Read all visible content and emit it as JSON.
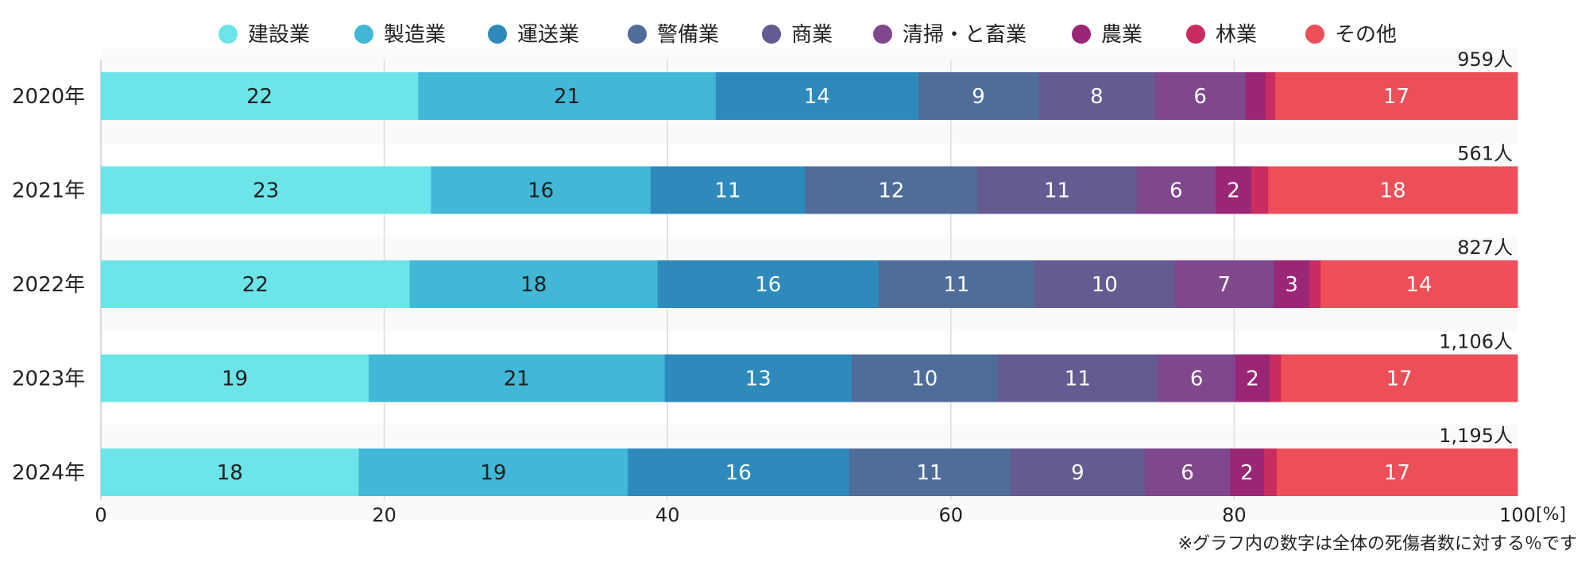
{
  "chart_data": {
    "type": "bar",
    "orientation": "horizontal",
    "stacked": true,
    "categories": [
      "2020年",
      "2021年",
      "2022年",
      "2023年",
      "2024年"
    ],
    "totals": [
      "959人",
      "561人",
      "827人",
      "1,106人",
      "1,195人"
    ],
    "series": [
      {
        "name": "建設業",
        "color": "#6ce4e8",
        "values": [
          22.4,
          23.3,
          21.8,
          18.9,
          18.2
        ],
        "labels": [
          "22",
          "23",
          "22",
          "19",
          "18"
        ]
      },
      {
        "name": "製造業",
        "color": "#42b7d6",
        "values": [
          21.0,
          15.5,
          17.5,
          20.9,
          19.0
        ],
        "labels": [
          "21",
          "16",
          "18",
          "21",
          "19"
        ]
      },
      {
        "name": "運送業",
        "color": "#2e8abb",
        "values": [
          14.3,
          10.9,
          15.6,
          13.2,
          15.6
        ],
        "labels": [
          "14",
          "11",
          "16",
          "13",
          "16"
        ]
      },
      {
        "name": "警備業",
        "color": "#4f6d98",
        "values": [
          8.5,
          12.2,
          11.0,
          10.3,
          11.4
        ],
        "labels": [
          "9",
          "12",
          "11",
          "10",
          "11"
        ]
      },
      {
        "name": "商業",
        "color": "#655b91",
        "values": [
          8.2,
          11.2,
          9.9,
          11.3,
          9.5
        ],
        "labels": [
          "8",
          "11",
          "10",
          "11",
          "9"
        ]
      },
      {
        "name": "清掃・と畜業",
        "color": "#7f478c",
        "values": [
          6.4,
          5.6,
          7.0,
          5.5,
          6.0
        ],
        "labels": [
          "6",
          "6",
          "7",
          "6",
          "6"
        ]
      },
      {
        "name": "農業",
        "color": "#9a2676",
        "values": [
          1.4,
          2.5,
          2.5,
          2.4,
          2.4
        ],
        "labels": [
          "",
          "2",
          "3",
          "2",
          "2"
        ]
      },
      {
        "name": "林業",
        "color": "#c92c5e",
        "values": [
          0.7,
          1.2,
          0.8,
          0.8,
          0.9
        ],
        "labels": [
          "",
          "",
          "",
          "",
          ""
        ]
      },
      {
        "name": "その他",
        "color": "#ec4f58",
        "values": [
          17.1,
          17.6,
          13.9,
          16.7,
          17.0
        ],
        "labels": [
          "17",
          "18",
          "14",
          "17",
          "17"
        ]
      }
    ],
    "xaxis": {
      "ticks": [
        "0",
        "20",
        "40",
        "60",
        "80",
        "100"
      ],
      "range": [
        0,
        100
      ],
      "unit": "[%]"
    },
    "grid": true,
    "legend_position": "top",
    "note": "※グラフ内の数字は全体の死傷者数に対する％です"
  }
}
